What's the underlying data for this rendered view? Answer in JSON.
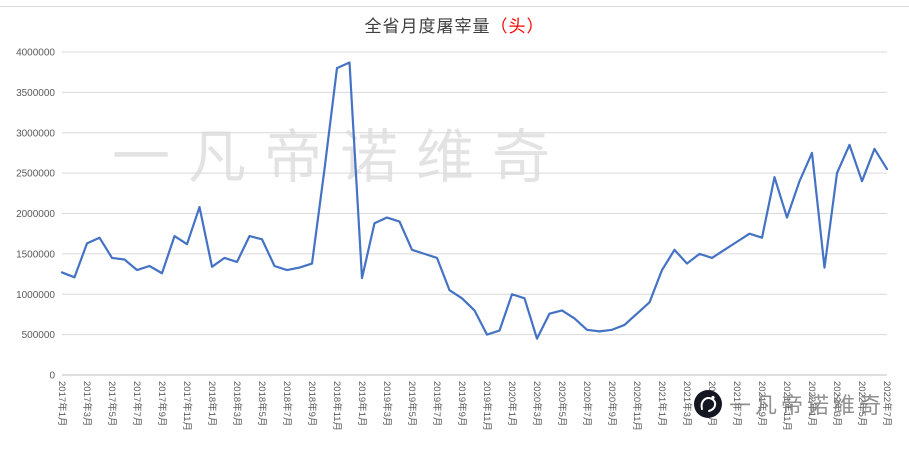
{
  "title": {
    "main": "全省月度屠宰量",
    "unit": "（头）"
  },
  "watermark": {
    "center_text": "一凡帝诺维奇",
    "bottom_text": "一凡帝诺维奇"
  },
  "colors": {
    "line": "#4472C4",
    "grid": "#d9d9d9",
    "axis": "#bfbfbf",
    "tick_label": "#595959",
    "title_red": "#ff0000"
  },
  "chart_data": {
    "type": "line",
    "title": "全省月度屠宰量（头）",
    "xlabel": "",
    "ylabel": "",
    "ylim": [
      0,
      4000000
    ],
    "yticks": [
      0,
      500000,
      1000000,
      1500000,
      2000000,
      2500000,
      3000000,
      3500000,
      4000000
    ],
    "grid": true,
    "legend": "none",
    "x_tick_every": 2,
    "x": [
      "2017年1月",
      "2017年2月",
      "2017年3月",
      "2017年4月",
      "2017年5月",
      "2017年6月",
      "2017年7月",
      "2017年8月",
      "2017年9月",
      "2017年10月",
      "2017年11月",
      "2017年12月",
      "2018年1月",
      "2018年2月",
      "2018年3月",
      "2018年4月",
      "2018年5月",
      "2018年6月",
      "2018年7月",
      "2018年8月",
      "2018年9月",
      "2018年10月",
      "2018年11月",
      "2018年12月",
      "2019年1月",
      "2019年2月",
      "2019年3月",
      "2019年4月",
      "2019年5月",
      "2019年6月",
      "2019年7月",
      "2019年8月",
      "2019年9月",
      "2019年10月",
      "2019年11月",
      "2019年12月",
      "2020年1月",
      "2020年2月",
      "2020年3月",
      "2020年4月",
      "2020年5月",
      "2020年6月",
      "2020年7月",
      "2020年8月",
      "2020年9月",
      "2020年10月",
      "2020年11月",
      "2020年12月",
      "2021年1月",
      "2021年2月",
      "2021年3月",
      "2021年4月",
      "2021年5月",
      "2021年6月",
      "2021年7月",
      "2021年8月",
      "2021年9月",
      "2021年10月",
      "2021年11月",
      "2021年12月",
      "2022年1月",
      "2022年2月",
      "2022年3月",
      "2022年4月",
      "2022年5月",
      "2022年6月",
      "2022年7月"
    ],
    "series": [
      {
        "name": "全省月度屠宰量",
        "values": [
          1270000,
          1210000,
          1630000,
          1700000,
          1450000,
          1430000,
          1300000,
          1350000,
          1260000,
          1720000,
          1620000,
          2080000,
          1340000,
          1450000,
          1400000,
          1720000,
          1680000,
          1350000,
          1300000,
          1330000,
          1380000,
          2550000,
          3800000,
          3870000,
          1200000,
          1880000,
          1950000,
          1900000,
          1550000,
          1500000,
          1450000,
          1050000,
          950000,
          800000,
          500000,
          550000,
          1000000,
          950000,
          450000,
          760000,
          800000,
          700000,
          560000,
          540000,
          560000,
          620000,
          760000,
          900000,
          1300000,
          1550000,
          1380000,
          1500000,
          1450000,
          1550000,
          1650000,
          1750000,
          1700000,
          2450000,
          1950000,
          2400000,
          2750000,
          1330000,
          2500000,
          2850000,
          2400000,
          2800000,
          2550000
        ]
      }
    ]
  }
}
